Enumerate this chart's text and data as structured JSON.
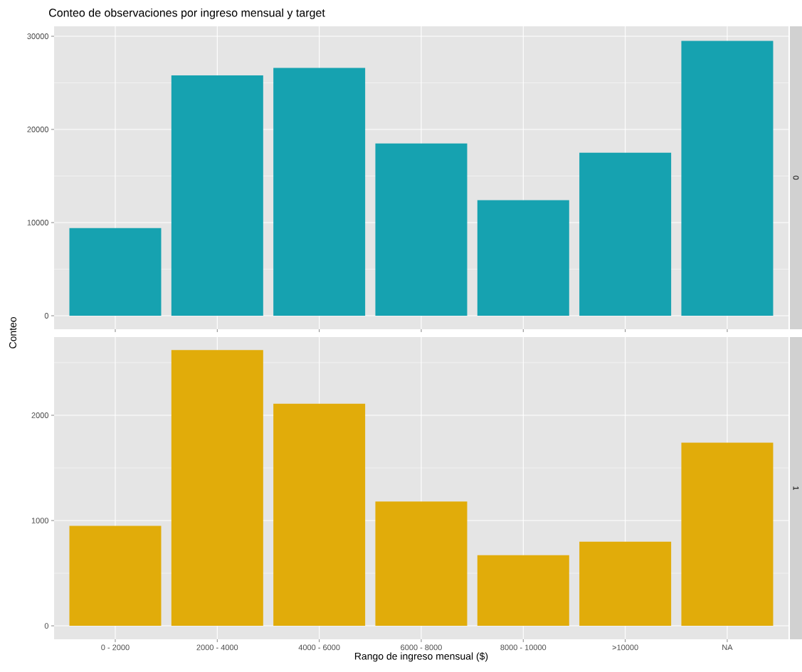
{
  "chart_data": [
    {
      "type": "bar",
      "title": "Conteo de observaciones por ingreso mensual y target",
      "annotations": [
        "0"
      ],
      "ylabel": "Conteo",
      "categories": [
        null,
        null,
        null,
        null,
        null,
        null,
        null
      ],
      "values": [
        9400,
        25800,
        26600,
        18500,
        12400,
        17500,
        29500
      ],
      "color": "#16a2b0",
      "ylim": [
        -1450,
        31070
      ],
      "yticks": [
        0,
        10000,
        20000,
        30000
      ],
      "grid": true,
      "tick_labels": "y"
    },
    {
      "type": "bar",
      "annotations": [
        "1"
      ],
      "xlabel": "Rango de ingreso mensual ($)",
      "categories": [
        "0 - 2000",
        "2000 - 4000",
        "4000 - 6000",
        "6000 - 8000",
        "8000 - 10000",
        ">10000",
        "NA"
      ],
      "values": [
        950,
        2620,
        2110,
        1180,
        670,
        800,
        1740
      ],
      "color": "#e1ac0a",
      "ylim": [
        -128,
        2743
      ],
      "yticks": [
        0,
        1000,
        2000
      ],
      "grid": true
    }
  ]
}
